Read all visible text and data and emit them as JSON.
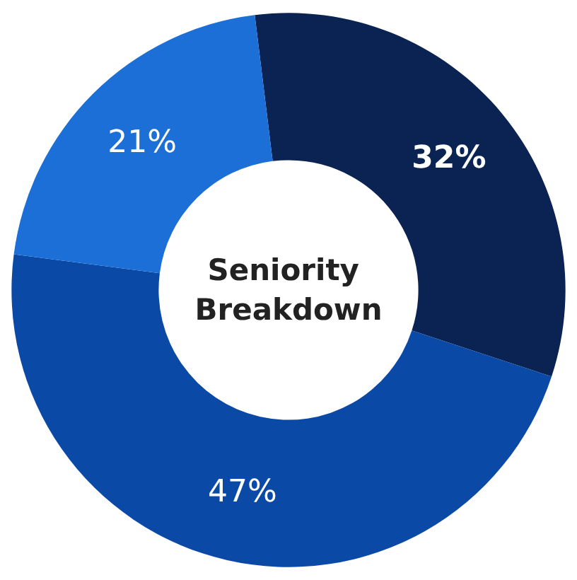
{
  "chart_data": {
    "type": "donut",
    "title": "Seniority Breakdown",
    "categories": [
      null,
      null,
      null
    ],
    "values": [
      32,
      47,
      21
    ],
    "value_labels": [
      "32%",
      "47%",
      "21%"
    ],
    "colors": [
      "#0b2352",
      "#0a4aa6",
      "#1b6fd6"
    ]
  }
}
